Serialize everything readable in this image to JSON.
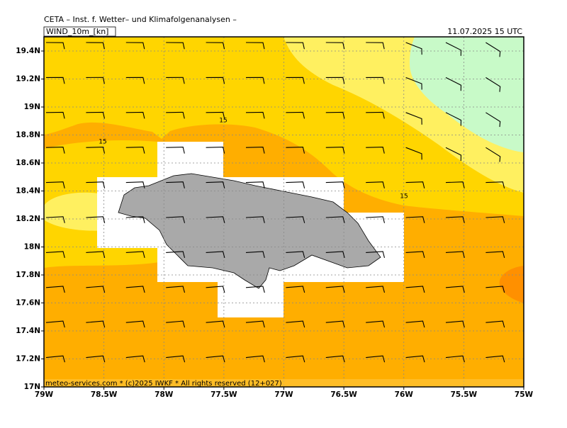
{
  "header": {
    "title": "CETA – Inst. f. Wetter– und Klimafolgenanalysen –",
    "field": "WIND_10m_[kn]",
    "date": "11.07.2025 15 UTC"
  },
  "map": {
    "lon_ticks": [
      {
        "value": -79,
        "label": "79W"
      },
      {
        "value": -78.5,
        "label": "78.5W"
      },
      {
        "value": -78,
        "label": "78W"
      },
      {
        "value": -77.5,
        "label": "77.5W"
      },
      {
        "value": -77,
        "label": "77W"
      },
      {
        "value": -76.5,
        "label": "76.5W"
      },
      {
        "value": -76,
        "label": "76W"
      },
      {
        "value": -75.5,
        "label": "75.5W"
      },
      {
        "value": -75,
        "label": "75W"
      }
    ],
    "lat_ticks": [
      {
        "value": 17,
        "label": "17N"
      },
      {
        "value": 17.2,
        "label": "17.2N"
      },
      {
        "value": 17.4,
        "label": "17.4N"
      },
      {
        "value": 17.6,
        "label": "17.6N"
      },
      {
        "value": 17.8,
        "label": "17.8N"
      },
      {
        "value": 18,
        "label": "18N"
      },
      {
        "value": 18.2,
        "label": "18.2N"
      },
      {
        "value": 18.4,
        "label": "18.4N"
      },
      {
        "value": 18.6,
        "label": "18.6N"
      },
      {
        "value": 18.8,
        "label": "18.8N"
      },
      {
        "value": 19,
        "label": "19N"
      },
      {
        "value": 19.2,
        "label": "19.2N"
      },
      {
        "value": 19.4,
        "label": "19.4N"
      }
    ],
    "contour_labels": [
      "15",
      "15",
      "15"
    ]
  },
  "footer": "meteo-services.com * (c)2025 IWKF * All rights reserved (12+027)"
}
